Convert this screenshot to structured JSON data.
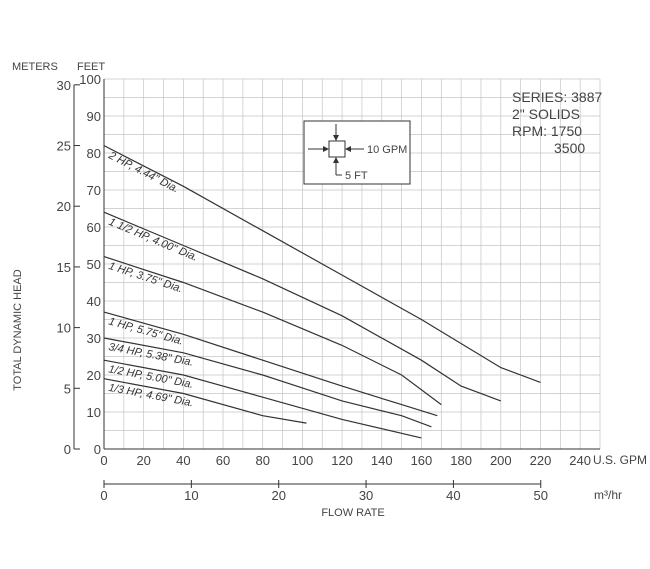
{
  "chart_data": {
    "type": "line",
    "title": "",
    "xlabel": "FLOW RATE",
    "ylabel": "TOTAL DYNAMIC HEAD",
    "x_unit_label": "U.S. GPM",
    "x2_unit_label": "m³/hr",
    "y_left_unit_label": "METERS",
    "y_right_unit_label": "FEET",
    "xlim": [
      0,
      250
    ],
    "ylim": [
      0,
      100
    ],
    "x_ticks": [
      0,
      20,
      40,
      60,
      80,
      100,
      120,
      140,
      160,
      180,
      200,
      220,
      240
    ],
    "x2_ticks": [
      0,
      10,
      20,
      30,
      40,
      50
    ],
    "x2_tick_labels": [
      "0",
      "10",
      "20",
      "30",
      "40",
      "50"
    ],
    "y_ticks": [
      0,
      10,
      20,
      30,
      40,
      50,
      60,
      70,
      80,
      90,
      100
    ],
    "y2_ticks": [
      0,
      5,
      10,
      15,
      20,
      25,
      30
    ],
    "y2_tick_labels": [
      "0",
      "5",
      "10",
      "15",
      "20",
      "25",
      "30"
    ],
    "grid": true,
    "legend": "top-right",
    "info_box": [
      "SERIES: 3887",
      "2\" SOLIDS",
      "RPM: 1750",
      "3500"
    ],
    "scale_key": {
      "x_label": "10 GPM",
      "y_label": "5 FT"
    },
    "series": [
      {
        "name": "2 HP, 4.44\" Dia.",
        "x": [
          0,
          40,
          80,
          120,
          160,
          200,
          220
        ],
        "y": [
          82,
          71,
          59,
          47,
          35,
          22,
          18
        ]
      },
      {
        "name": "1 1/2 HP, 4.00\" Dia.",
        "x": [
          0,
          40,
          80,
          100,
          120,
          160,
          180,
          200
        ],
        "y": [
          64,
          55,
          46,
          41,
          36,
          24,
          17,
          13
        ]
      },
      {
        "name": "1 HP, 3.75\" Dia.",
        "x": [
          0,
          40,
          80,
          120,
          150,
          170
        ],
        "y": [
          52,
          45,
          37,
          28,
          20,
          12
        ]
      },
      {
        "name": "1 HP, 5.75\" Dia.",
        "x": [
          0,
          40,
          80,
          120,
          150,
          168
        ],
        "y": [
          37,
          31,
          24,
          17,
          12,
          9
        ]
      },
      {
        "name": "3/4 HP, 5.38\" Dia.",
        "x": [
          0,
          40,
          80,
          120,
          150,
          165
        ],
        "y": [
          30,
          26,
          20,
          13,
          9,
          6
        ]
      },
      {
        "name": "1/2 HP, 5.00\" Dia.",
        "x": [
          0,
          40,
          80,
          120,
          160
        ],
        "y": [
          24,
          20,
          14,
          8,
          3
        ]
      },
      {
        "name": "1/3 HP, 4.69\" Dia.",
        "x": [
          0,
          40,
          80,
          102
        ],
        "y": [
          19,
          15,
          9,
          7
        ]
      }
    ]
  }
}
